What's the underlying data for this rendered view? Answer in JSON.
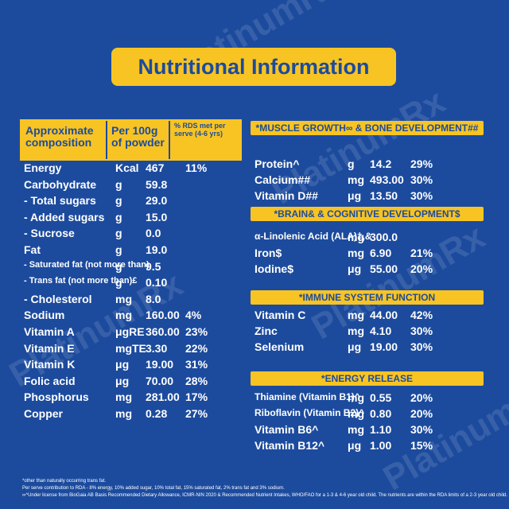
{
  "watermark": "PlatinumRx",
  "title": "Nutritional Information",
  "left_table": {
    "header": [
      "Approximate composition",
      "Per 100g of powder",
      "% RDS met per serve (4-6 yrs)"
    ],
    "rows": [
      [
        "Energy",
        "Kcal",
        "467",
        "11%"
      ],
      [
        "Carbohydrate",
        "g",
        "59.8"
      ],
      [
        "- Total sugars",
        "g",
        "29.0"
      ],
      [
        "- Added sugars",
        "g",
        "15.0"
      ],
      [
        "- Sucrose",
        "g",
        "0.0"
      ],
      [
        "Fat",
        "g",
        "19.0"
      ],
      [
        "- Saturated fat (not more than)",
        "g",
        "9.5"
      ],
      [
        "- Trans fat (not more than)£",
        "g",
        "0.10"
      ],
      [
        "- Cholesterol",
        "mg",
        "8.0"
      ],
      [
        "Sodium",
        "mg",
        "160.00",
        "4%"
      ],
      [
        "Vitamin A",
        "μgRE",
        "360.00",
        "23%"
      ],
      [
        "Vitamin E",
        "mgTE",
        "3.30",
        "22%"
      ],
      [
        "Vitamin K",
        "μg",
        "19.00",
        "31%"
      ],
      [
        "Folic acid",
        "μg",
        "70.00",
        "28%"
      ],
      [
        "Phosphorus",
        "mg",
        "281.00",
        "17%"
      ],
      [
        "Copper",
        "mg",
        "0.28",
        "27%"
      ]
    ]
  },
  "sections": [
    {
      "heading": "*MUSCLE GROWTH∞ & BONE DEVELOPMENT##",
      "rows": [
        [
          "Protein^",
          "g",
          "14.2",
          "29%"
        ],
        [
          "Calcium##",
          "mg",
          "493.00",
          "30%"
        ],
        [
          "Vitamin D##",
          "μg",
          "13.50",
          "30%"
        ]
      ]
    },
    {
      "heading": "*BRAIN& & COGNITIVE DEVELOPMENT$",
      "rows": [
        [
          "α-Linolenic Acid (ALA)‡,&",
          "mg",
          "300.0"
        ],
        [
          "Iron$",
          "mg",
          "6.90",
          "21%"
        ],
        [
          "Iodine$",
          "μg",
          "55.00",
          "20%"
        ]
      ]
    },
    {
      "heading": "*IMMUNE SYSTEM FUNCTION",
      "rows": [
        [
          "Vitamin C",
          "mg",
          "44.00",
          "42%"
        ],
        [
          "Zinc",
          "mg",
          "4.10",
          "30%"
        ],
        [
          "Selenium",
          "μg",
          "19.00",
          "30%"
        ]
      ]
    },
    {
      "heading": "*ENERGY RELEASE",
      "rows": [
        [
          "Thiamine (Vitamin B1)^",
          "mg",
          "0.55",
          "20%"
        ],
        [
          "Riboflavin (Vitamin B2)^",
          "mg",
          "0.80",
          "20%"
        ],
        [
          "Vitamin B6^",
          "mg",
          "1.10",
          "30%"
        ],
        [
          "Vitamin B12^",
          "μg",
          "1.00",
          "15%"
        ]
      ]
    }
  ],
  "footnotes": [
    "*other than naturally occurring trans fat.",
    "Per serve contribution to RDA - 8% energy, 10% added sugar, 10% total fat, 15% saturated fat, 2% trans fat and 3% sodium.",
    "∞^Under license from BioGaia AB Basis Recommended Dietary Allowance, ICMR-NIN 2020 & Recommended Nutrient Intakes, WHO/FAO for a 1-3 & 4-6 year old child. The nutrients are within the RDA limits of a 2-3 year old child."
  ]
}
